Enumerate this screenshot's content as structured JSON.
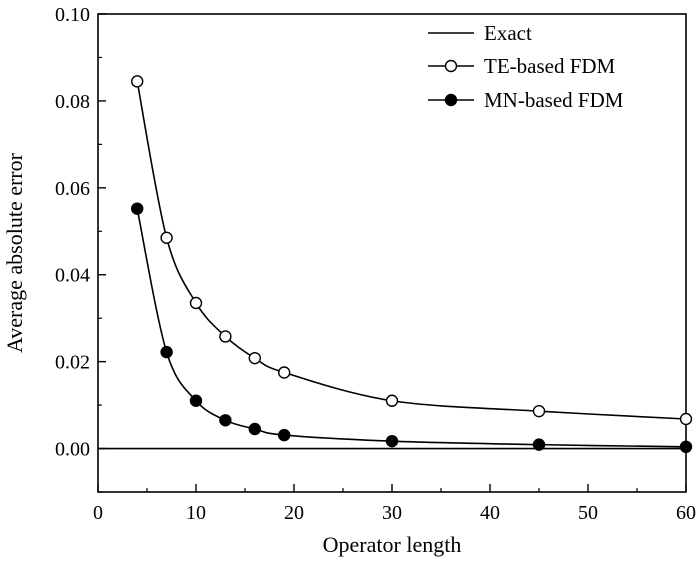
{
  "chart_data": {
    "type": "line",
    "title": "",
    "xlabel": "Operator length",
    "ylabel": "Average absolute error",
    "xlim": [
      0,
      60
    ],
    "ylim": [
      -0.01,
      0.1
    ],
    "xticks": [
      0,
      10,
      20,
      30,
      40,
      50,
      60
    ],
    "xtick_labels": [
      "0",
      "10",
      "20",
      "30",
      "40",
      "50",
      "60"
    ],
    "yticks": [
      0.0,
      0.02,
      0.04,
      0.06,
      0.08,
      0.1
    ],
    "ytick_labels": [
      "0.00",
      "0.02",
      "0.04",
      "0.06",
      "0.08",
      "0.10"
    ],
    "grid": false,
    "legend_position": "top-right",
    "series": [
      {
        "name": "Exact",
        "marker": "none",
        "x": [
          0,
          60
        ],
        "y": [
          0.0,
          0.0
        ]
      },
      {
        "name": "TE-based FDM",
        "marker": "open-circle",
        "x": [
          4,
          7,
          10,
          13,
          16,
          19,
          30,
          45,
          60
        ],
        "y": [
          0.0845,
          0.0485,
          0.0335,
          0.0258,
          0.0208,
          0.0175,
          0.011,
          0.0086,
          0.0068
        ]
      },
      {
        "name": "MN-based FDM",
        "marker": "filled-circle",
        "x": [
          4,
          7,
          10,
          13,
          16,
          19,
          30,
          45,
          60
        ],
        "y": [
          0.0552,
          0.0222,
          0.011,
          0.0065,
          0.0045,
          0.0031,
          0.0017,
          0.0009,
          0.0004
        ]
      }
    ]
  }
}
